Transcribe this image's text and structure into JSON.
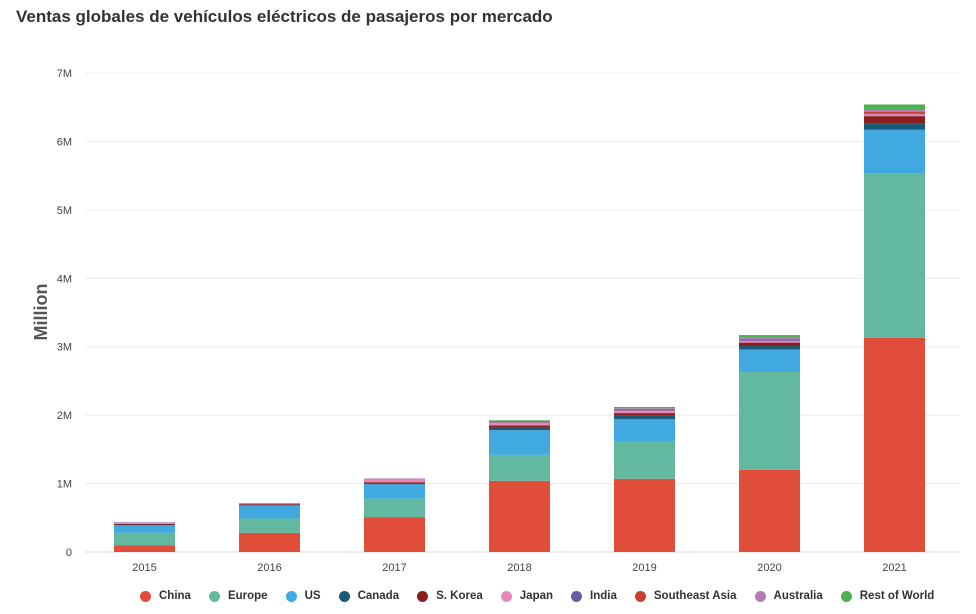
{
  "chart_data": {
    "type": "bar",
    "stacked": true,
    "title": "Ventas globales de vehículos eléctricos de pasajeros por mercado",
    "xlabel": "",
    "ylabel": "Million",
    "ylim": [
      0,
      7000000
    ],
    "yticks": [
      0,
      1000000,
      2000000,
      3000000,
      4000000,
      5000000,
      6000000,
      7000000
    ],
    "ytick_labels": [
      "0",
      "1M",
      "2M",
      "3M",
      "4M",
      "5M",
      "6M",
      "7M"
    ],
    "grid": true,
    "legend_position": "bottom",
    "categories": [
      "2015",
      "2016",
      "2017",
      "2018",
      "2019",
      "2020",
      "2021"
    ],
    "series": [
      {
        "name": "China",
        "color": "#e04e39",
        "values": [
          0.1,
          0.28,
          0.51,
          1.04,
          1.07,
          1.2,
          3.13
        ]
      },
      {
        "name": "Europe",
        "color": "#63b99f",
        "values": [
          0.18,
          0.21,
          0.27,
          0.38,
          0.54,
          1.43,
          2.4
        ]
      },
      {
        "name": "US",
        "color": "#3fa9e0",
        "values": [
          0.12,
          0.2,
          0.21,
          0.36,
          0.33,
          0.33,
          0.64
        ]
      },
      {
        "name": "Canada",
        "color": "#1c5b78",
        "values": [
          0.005,
          0.005,
          0.02,
          0.04,
          0.05,
          0.05,
          0.09
        ]
      },
      {
        "name": "S. Korea",
        "color": "#8b1f1f",
        "values": [
          0.005,
          0.005,
          0.01,
          0.03,
          0.04,
          0.05,
          0.11
        ]
      },
      {
        "name": "Japan",
        "color": "#e58ab8",
        "values": [
          0.02,
          0.01,
          0.05,
          0.05,
          0.04,
          0.03,
          0.03
        ]
      },
      {
        "name": "India",
        "color": "#6a5aa6",
        "values": [
          0,
          0,
          0,
          0.005,
          0.01,
          0.01,
          0.01
        ]
      },
      {
        "name": "Southeast Asia",
        "color": "#c7412f",
        "values": [
          0,
          0,
          0,
          0.005,
          0.01,
          0.01,
          0.02
        ]
      },
      {
        "name": "Australia",
        "color": "#b47ab8",
        "values": [
          0.005,
          0.005,
          0.005,
          0.01,
          0.01,
          0.02,
          0.03
        ]
      },
      {
        "name": "Rest of World",
        "color": "#4caf50",
        "values": [
          0,
          0,
          0,
          0.005,
          0.02,
          0.04,
          0.08
        ]
      }
    ],
    "value_unit": "million"
  }
}
